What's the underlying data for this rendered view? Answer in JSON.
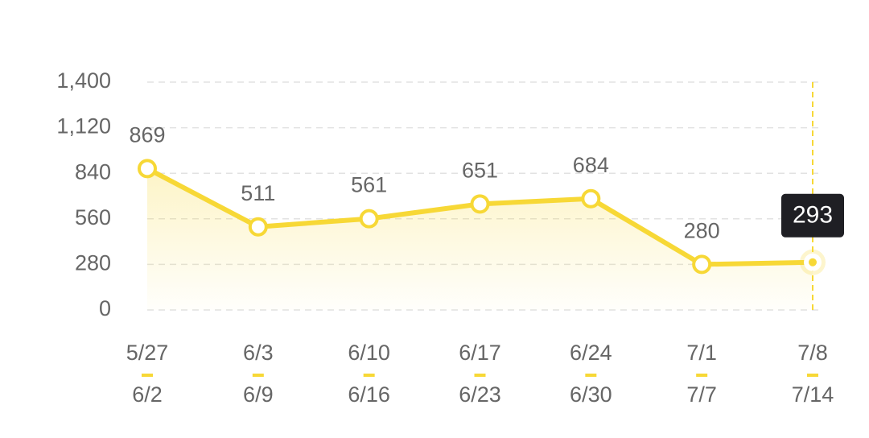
{
  "chart_data": {
    "type": "line",
    "categories": [
      [
        "5/27",
        "6/2"
      ],
      [
        "6/3",
        "6/9"
      ],
      [
        "6/10",
        "6/16"
      ],
      [
        "6/17",
        "6/23"
      ],
      [
        "6/24",
        "6/30"
      ],
      [
        "7/1",
        "7/7"
      ],
      [
        "7/8",
        "7/14"
      ]
    ],
    "values": [
      869,
      511,
      561,
      651,
      684,
      280,
      293
    ],
    "color": "#f7d836",
    "ylim": [
      0,
      1400
    ],
    "yticks": [
      0,
      280,
      560,
      840,
      {
        "value": 1120,
        "label": "1,120"
      },
      {
        "value": 1400,
        "label": "1,400"
      }
    ],
    "grid": true,
    "highlighted": 6
  }
}
